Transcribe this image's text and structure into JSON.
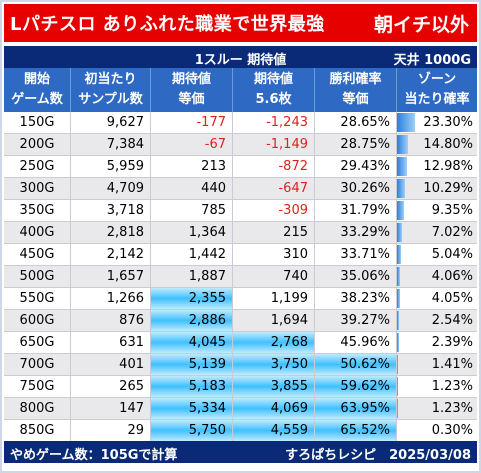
{
  "header": {
    "title_left": "Lパチスロ ありふれた職業で世界最強",
    "title_right": "朝イチ以外"
  },
  "subheader": {
    "center": "1スルー 期待値",
    "right": "天井 1000G"
  },
  "columns": [
    {
      "line1": "開始",
      "line2": "ゲーム数"
    },
    {
      "line1": "初当たり",
      "line2": "サンプル数"
    },
    {
      "line1": "期待値",
      "line2": "等価"
    },
    {
      "line1": "期待値",
      "line2": "5.6枚"
    },
    {
      "line1": "勝利確率",
      "line2": "等価"
    },
    {
      "line1": "ゾーン",
      "line2": "当たり確率"
    }
  ],
  "rows": [
    {
      "start": "150G",
      "samples": "9,627",
      "ev_equal": "-177",
      "ev_56": "-1,243",
      "win_rate": "28.65%",
      "zone_rate": "23.30%",
      "zone_value": 23.3
    },
    {
      "start": "200G",
      "samples": "7,384",
      "ev_equal": "-67",
      "ev_56": "-1,149",
      "win_rate": "28.75%",
      "zone_rate": "14.80%",
      "zone_value": 14.8
    },
    {
      "start": "250G",
      "samples": "5,959",
      "ev_equal": "213",
      "ev_56": "-872",
      "win_rate": "29.43%",
      "zone_rate": "12.98%",
      "zone_value": 12.98
    },
    {
      "start": "300G",
      "samples": "4,709",
      "ev_equal": "440",
      "ev_56": "-647",
      "win_rate": "30.26%",
      "zone_rate": "10.29%",
      "zone_value": 10.29
    },
    {
      "start": "350G",
      "samples": "3,718",
      "ev_equal": "785",
      "ev_56": "-309",
      "win_rate": "31.79%",
      "zone_rate": "9.35%",
      "zone_value": 9.35
    },
    {
      "start": "400G",
      "samples": "2,818",
      "ev_equal": "1,364",
      "ev_56": "215",
      "win_rate": "33.29%",
      "zone_rate": "7.02%",
      "zone_value": 7.02
    },
    {
      "start": "450G",
      "samples": "2,142",
      "ev_equal": "1,442",
      "ev_56": "310",
      "win_rate": "33.71%",
      "zone_rate": "5.04%",
      "zone_value": 5.04
    },
    {
      "start": "500G",
      "samples": "1,657",
      "ev_equal": "1,887",
      "ev_56": "740",
      "win_rate": "35.06%",
      "zone_rate": "4.06%",
      "zone_value": 4.06
    },
    {
      "start": "550G",
      "samples": "1,266",
      "ev_equal": "2,355",
      "ev_56": "1,199",
      "win_rate": "38.23%",
      "zone_rate": "4.05%",
      "zone_value": 4.05
    },
    {
      "start": "600G",
      "samples": "876",
      "ev_equal": "2,886",
      "ev_56": "1,694",
      "win_rate": "39.27%",
      "zone_rate": "2.54%",
      "zone_value": 2.54
    },
    {
      "start": "650G",
      "samples": "631",
      "ev_equal": "4,045",
      "ev_56": "2,768",
      "win_rate": "45.96%",
      "zone_rate": "2.39%",
      "zone_value": 2.39
    },
    {
      "start": "700G",
      "samples": "401",
      "ev_equal": "5,139",
      "ev_56": "3,750",
      "win_rate": "50.62%",
      "zone_rate": "1.41%",
      "zone_value": 1.41
    },
    {
      "start": "750G",
      "samples": "265",
      "ev_equal": "5,183",
      "ev_56": "3,855",
      "win_rate": "59.62%",
      "zone_rate": "1.23%",
      "zone_value": 1.23
    },
    {
      "start": "800G",
      "samples": "147",
      "ev_equal": "5,334",
      "ev_56": "4,069",
      "win_rate": "63.95%",
      "zone_rate": "1.23%",
      "zone_value": 1.23
    },
    {
      "start": "850G",
      "samples": "29",
      "ev_equal": "5,750",
      "ev_56": "4,559",
      "win_rate": "65.52%",
      "zone_rate": "0.30%",
      "zone_value": 0.3
    }
  ],
  "zone_bar_max": 23.3,
  "footer": {
    "left": "やめゲーム数：105Gで計算",
    "right": "すろぱちレシピ　2025/03/08"
  },
  "colors": {
    "title_bg": "#e60000",
    "subbar_bg": "#0a2a78",
    "header_bg": "#2e69c4",
    "negative": "#e02020",
    "highlight": "#3fc0ff"
  }
}
